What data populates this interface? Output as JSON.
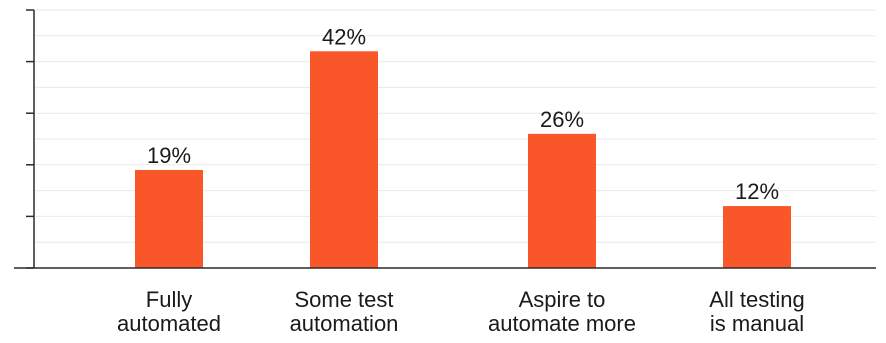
{
  "chart_data": {
    "type": "bar",
    "categories": [
      [
        "Fully",
        "automated"
      ],
      [
        "Some test",
        "automation"
      ],
      [
        "Aspire to",
        "automate more"
      ],
      [
        "All testing",
        "is manual"
      ]
    ],
    "values": [
      19,
      42,
      26,
      12
    ],
    "value_labels": [
      "19%",
      "42%",
      "26%",
      "12%"
    ],
    "ylim": [
      0,
      50
    ],
    "y_ticks": [
      0,
      10,
      20,
      30,
      40,
      50
    ],
    "grid": true,
    "bar_color": "#f9572a",
    "title": "",
    "xlabel": "",
    "ylabel": ""
  }
}
